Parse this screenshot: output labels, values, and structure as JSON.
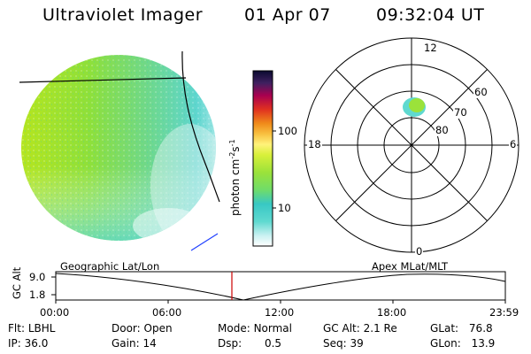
{
  "header": {
    "instrument": "Ultraviolet Imager",
    "date": "01 Apr 07",
    "time": "09:32:04 UT"
  },
  "colorbar": {
    "label_main": "photon cm",
    "label_sup1": "-2",
    "label_mid": "s",
    "label_sup2": "-1",
    "ticks": [
      "100",
      "10"
    ]
  },
  "polar_plot": {
    "mlt_labels": [
      "12",
      "18",
      "6",
      "0"
    ],
    "lat_labels": [
      "60",
      "70",
      "80"
    ]
  },
  "timeline": {
    "axis_label": "GC Alt",
    "y_ticks": [
      "9.0",
      "1.8"
    ],
    "left_label": "Geographic Lat/Lon",
    "right_label": "Apex MLat/MLT",
    "x_ticks": [
      "00:00",
      "06:00",
      "12:00",
      "18:00",
      "23:59"
    ]
  },
  "status": {
    "row1": [
      {
        "key": "Flt:",
        "value": "LBHL"
      },
      {
        "key": "Door:",
        "value": "Open"
      },
      {
        "key": "Mode:",
        "value": "Normal"
      },
      {
        "key": "GC Alt:",
        "value": "2.1 Re"
      },
      {
        "key": "GLat:",
        "value": "76.8"
      }
    ],
    "row2": [
      {
        "key": "IP:",
        "value": "36.0"
      },
      {
        "key": "Gain:",
        "value": "14"
      },
      {
        "key": "Dsp:",
        "value": "0.5"
      },
      {
        "key": "Seq:",
        "value": "39"
      },
      {
        "key": "GLon:",
        "value": "13.9"
      }
    ]
  },
  "colors": {
    "image_green": "#9be23a",
    "image_cyan": "#5fd9d0",
    "marker_red": "#cc0000",
    "vector_blue": "#2040ff"
  }
}
